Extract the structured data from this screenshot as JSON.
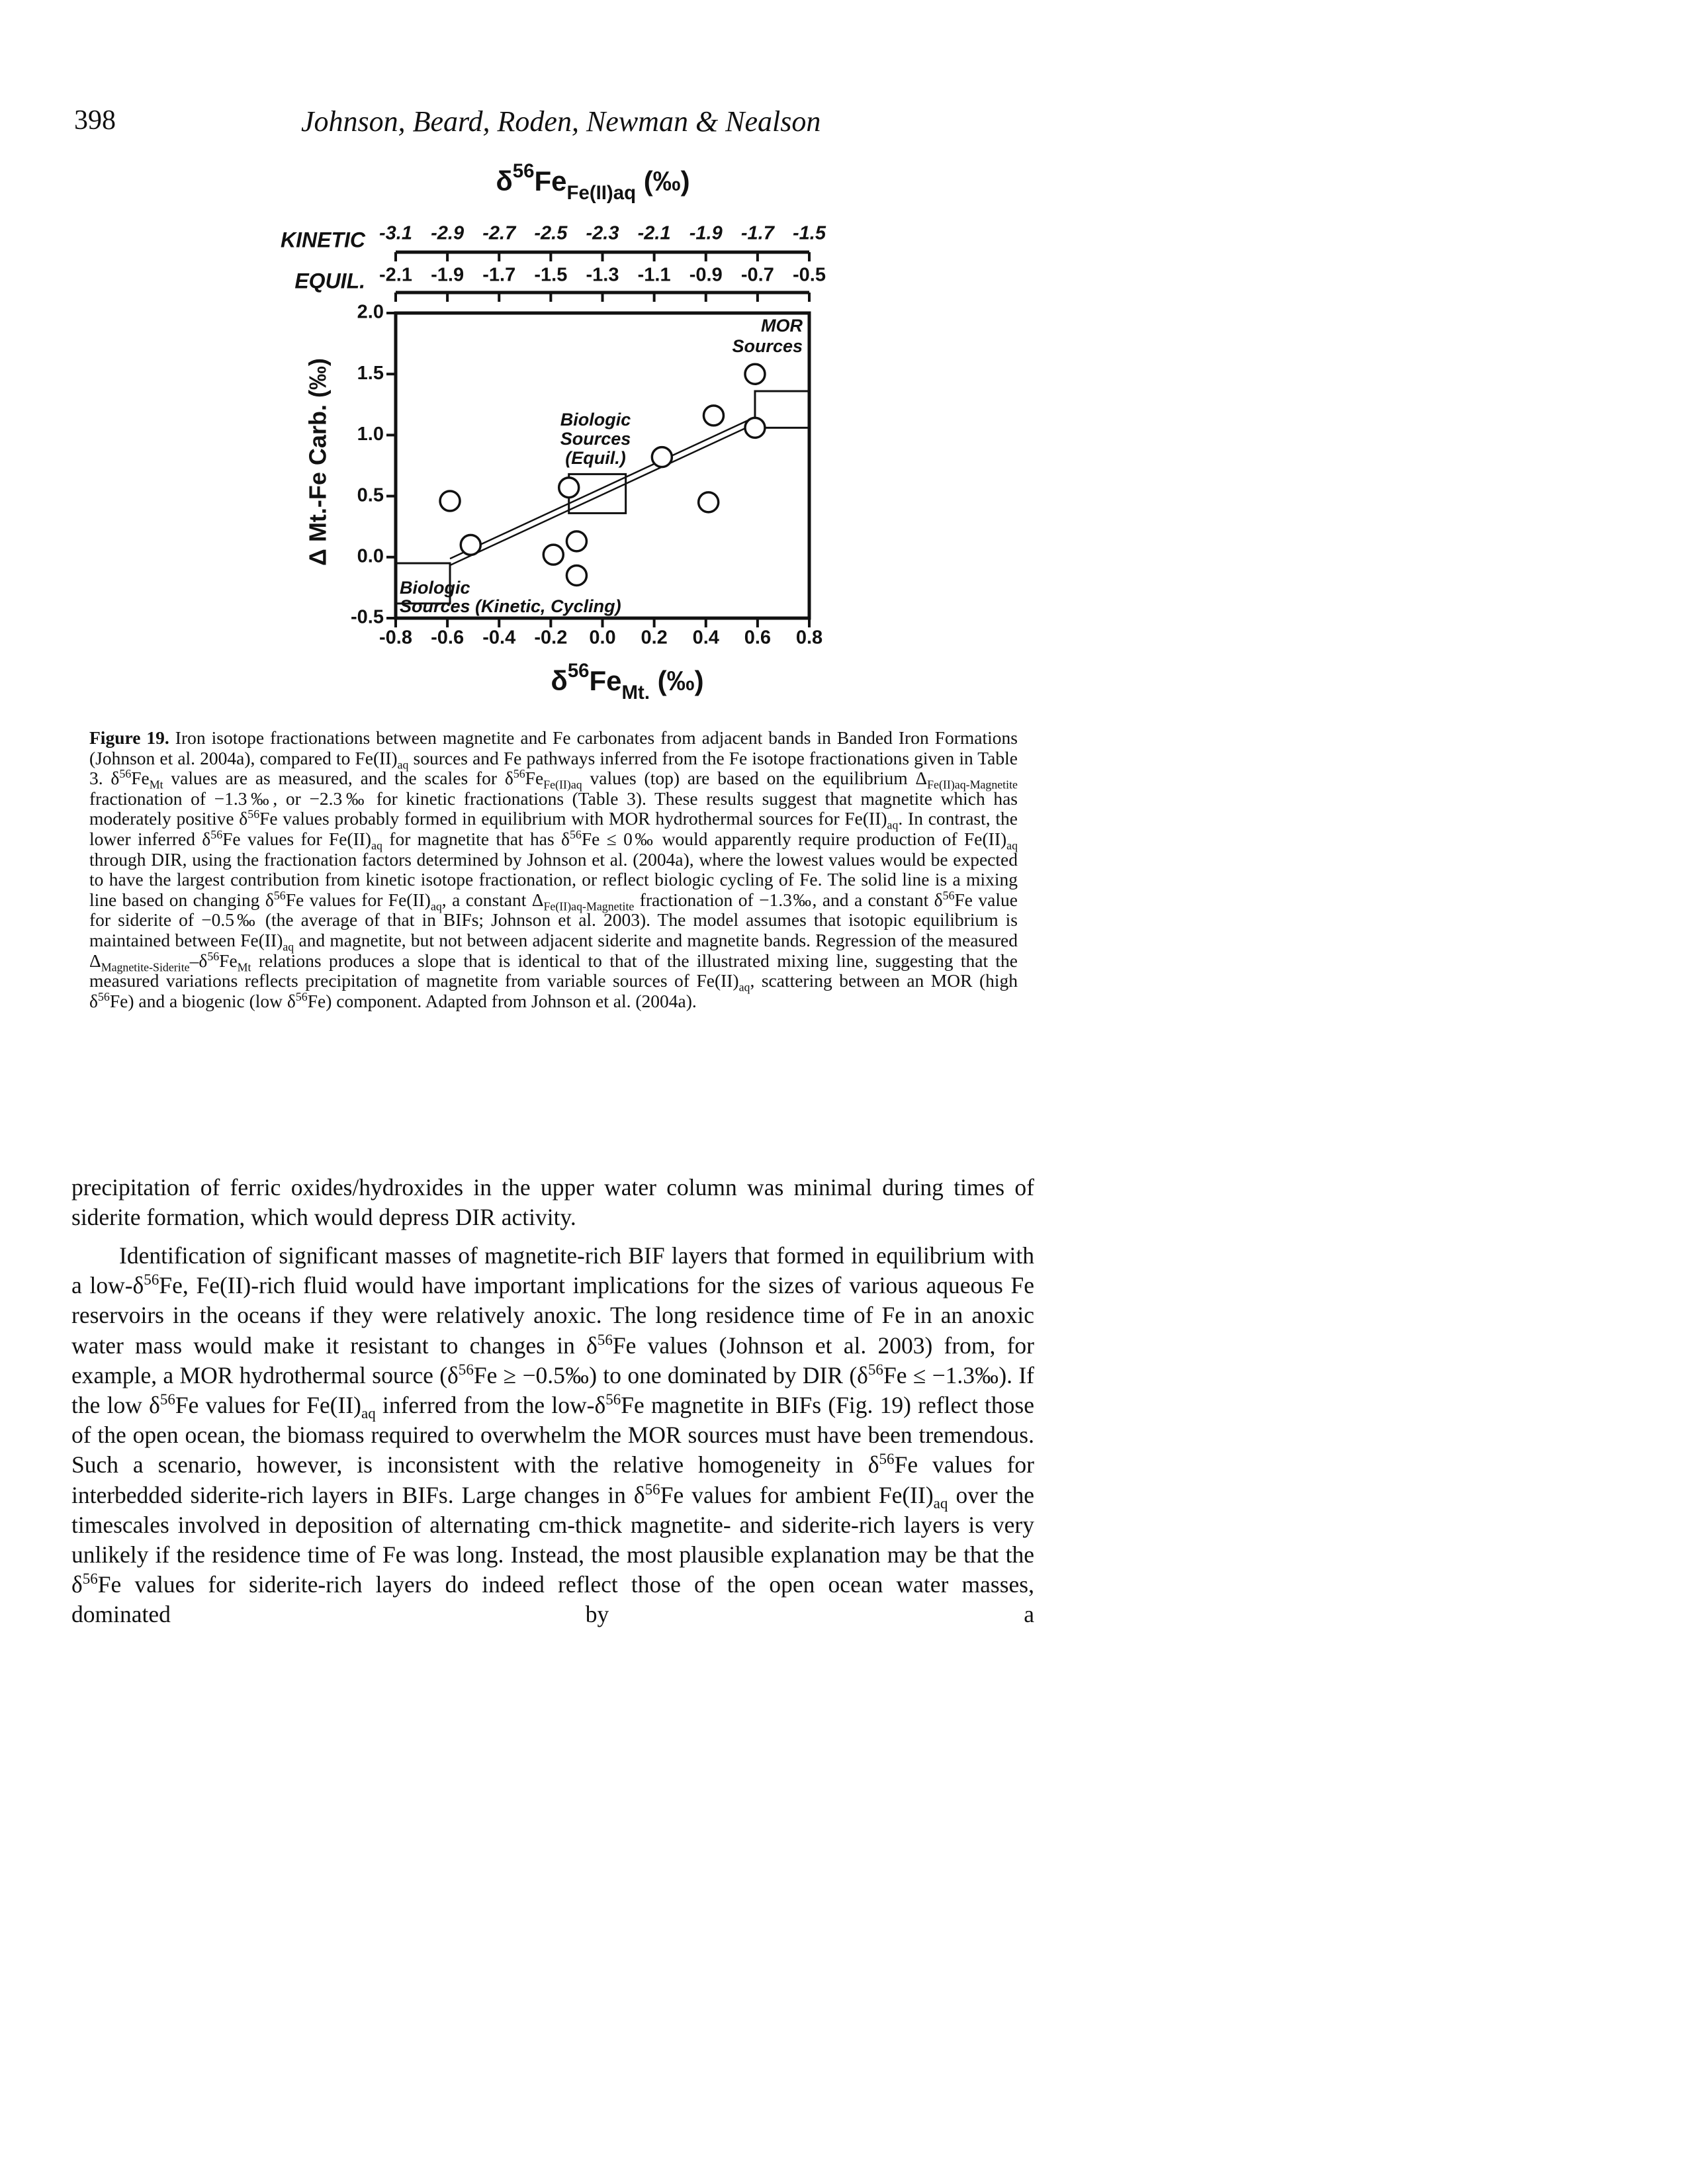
{
  "header": {
    "page_number": "398",
    "authors": "Johnson, Beard, Roden, Newman & Nealson"
  },
  "chart_data": {
    "type": "scatter",
    "title": [
      "δ",
      {
        "sup": "56"
      },
      "Fe",
      {
        "sub": "Fe(II)aq"
      },
      " (‰)"
    ],
    "top_axes": [
      {
        "name": "KINETIC",
        "lim": [
          -3.1,
          -1.5
        ],
        "ticks": [
          -3.1,
          -2.9,
          -2.7,
          -2.5,
          -2.3,
          -2.1,
          -1.9,
          -1.7,
          -1.5
        ]
      },
      {
        "name": "EQUIL.",
        "lim": [
          -2.1,
          -0.5
        ],
        "ticks": [
          -2.1,
          -1.9,
          -1.7,
          -1.5,
          -1.3,
          -1.1,
          -0.9,
          -0.7,
          -0.5
        ]
      }
    ],
    "xlabel": [
      "δ",
      {
        "sup": "56"
      },
      "Fe",
      {
        "sub": "Mt."
      },
      " (‰)"
    ],
    "ylabel": "Δ Mt.-Fe Carb. (‰)",
    "x": [
      -0.59,
      -0.51,
      -0.13,
      -0.1,
      -0.19,
      -0.1,
      0.23,
      0.43,
      0.59,
      0.59,
      0.41
    ],
    "y": [
      0.46,
      0.1,
      0.57,
      0.13,
      0.02,
      -0.15,
      0.82,
      1.16,
      1.5,
      1.06,
      0.45
    ],
    "xlim": [
      -0.8,
      0.8
    ],
    "ylim": [
      -0.5,
      2.0
    ],
    "xticks": [
      -0.8,
      -0.6,
      -0.4,
      -0.2,
      {
        "value": 0,
        "label": "0.0"
      },
      0.2,
      0.4,
      0.6,
      0.8
    ],
    "yticks": [
      -0.5,
      {
        "value": 0,
        "label": "0.0"
      },
      0.5,
      {
        "value": 1,
        "label": "1.0"
      },
      1.5,
      {
        "value": 2,
        "label": "2.0"
      }
    ],
    "boxes": [
      {
        "x": [
          -0.8,
          -0.59
        ],
        "y": [
          -0.38,
          -0.05
        ]
      },
      {
        "x": [
          -0.13,
          0.09
        ],
        "y": [
          0.36,
          0.68
        ]
      },
      {
        "x": [
          0.59,
          0.8
        ],
        "y": [
          1.06,
          1.36
        ]
      }
    ],
    "mixing_line": {
      "x": [
        -0.59,
        0.59
      ],
      "y": [
        -0.04,
        1.12
      ]
    },
    "annotations": [
      {
        "lines": [
          "MOR",
          "Sources"
        ]
      },
      {
        "lines": [
          "Biologic",
          "Sources",
          "(Equil.)"
        ]
      },
      {
        "lines": [
          "Biologic",
          "Sources (Kinetic, Cycling)"
        ]
      }
    ]
  },
  "caption": [
    {
      "b": "Figure 19."
    },
    " Iron isotope fractionations between magnetite and Fe carbonates from adjacent bands in Banded Iron Formations (Johnson et al. 2004a), compared to Fe(II)",
    {
      "sub": "aq"
    },
    " sources and Fe pathways inferred from the Fe isotope fractionations given in Table 3. δ",
    {
      "sup": "56"
    },
    "Fe",
    {
      "sub": "Mt"
    },
    " values are as measured, and the scales for δ",
    {
      "sup": "56"
    },
    "Fe",
    {
      "sub": "Fe(II)aq"
    },
    " values (top) are based on the equilibrium Δ",
    {
      "sub": "Fe(II)aq-Magnetite"
    },
    " fractionation of −1.3‰, or −2.3‰ for kinetic fractionations (Table 3). These results suggest that magnetite which has moderately positive δ",
    {
      "sup": "56"
    },
    "Fe values probably formed in equilibrium with MOR hydrothermal sources for Fe(II)",
    {
      "sub": "aq"
    },
    ". In contrast, the lower inferred δ",
    {
      "sup": "56"
    },
    "Fe values for Fe(II)",
    {
      "sub": "aq"
    },
    " for magnetite that has δ",
    {
      "sup": "56"
    },
    "Fe ≤ 0‰ would apparently require production of Fe(II)",
    {
      "sub": "aq"
    },
    " through DIR, using the fractionation factors determined by Johnson et al. (2004a), where the lowest values would be expected to have the largest contribution from kinetic isotope fractionation, or reflect biologic cycling of Fe. The solid line is a mixing line based on changing δ",
    {
      "sup": "56"
    },
    "Fe values for Fe(II)",
    {
      "sub": "aq"
    },
    ", a constant Δ",
    {
      "sub": "Fe(II)aq-Magnetite"
    },
    " fractionation of −1.3‰, and a constant δ",
    {
      "sup": "56"
    },
    "Fe value for siderite of −0.5‰ (the average of that in BIFs; Johnson et al. 2003). The model assumes that isotopic equilibrium is maintained between Fe(II)",
    {
      "sub": "aq"
    },
    " and magnetite, but not between adjacent siderite and magnetite bands. Regression of the measured Δ",
    {
      "sub": "Magnetite-Siderite"
    },
    "–δ",
    {
      "sup": "56"
    },
    "Fe",
    {
      "sub": "Mt"
    },
    " relations produces a slope that is identical to that of the illustrated mixing line, suggesting that the measured variations reflects precipitation of magnetite from variable sources of Fe(II)",
    {
      "sub": "aq"
    },
    ", scattering between an MOR (high δ",
    {
      "sup": "56"
    },
    "Fe) and a biogenic (low δ",
    {
      "sup": "56"
    },
    "Fe) component. Adapted from Johnson et al. (2004a)."
  ],
  "body": [
    [
      "precipitation of ferric oxides/hydroxides in the upper water column was minimal during times of siderite formation, which would depress DIR activity."
    ],
    [
      "Identification of significant masses of magnetite-rich BIF layers that formed in equilibrium with a low-δ",
      {
        "sup": "56"
      },
      "Fe, Fe(II)-rich fluid would have important implications for the sizes of various aqueous Fe reservoirs in the oceans if they were relatively anoxic. The long residence time of Fe in an anoxic water mass would make it resistant to changes in δ",
      {
        "sup": "56"
      },
      "Fe values (Johnson et al. 2003) from, for example, a MOR hydrothermal source (δ",
      {
        "sup": "56"
      },
      "Fe ≥ −0.5‰) to one dominated by DIR (δ",
      {
        "sup": "56"
      },
      "Fe ≤ −1.3‰). If the low δ",
      {
        "sup": "56"
      },
      "Fe values for Fe(II)",
      {
        "sub": "aq"
      },
      " inferred from the low-δ",
      {
        "sup": "56"
      },
      "Fe magnetite in BIFs (Fig. 19) reflect those of the open ocean, the biomass required to overwhelm the MOR sources must have been tremendous. Such a scenario, however, is inconsistent with the relative homogeneity in δ",
      {
        "sup": "56"
      },
      "Fe values for interbedded siderite-rich layers in BIFs. Large changes in δ",
      {
        "sup": "56"
      },
      "Fe values for ambient Fe(II)",
      {
        "sub": "aq"
      },
      " over the timescales involved in deposition of alternating cm-thick magnetite- and siderite-rich layers is very unlikely if the residence time of Fe was long. Instead, the most plausible explanation may be that the δ",
      {
        "sup": "56"
      },
      "Fe values for siderite-rich layers do indeed reflect those of the open ocean water masses, dominated by a"
    ]
  ]
}
